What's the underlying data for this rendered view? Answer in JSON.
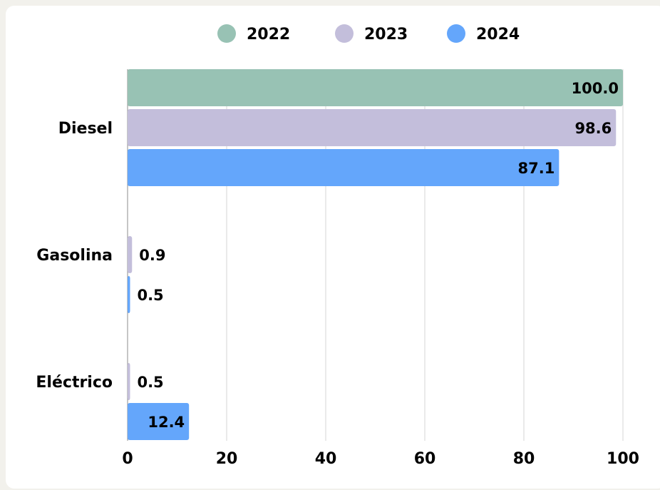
{
  "chart_data": {
    "type": "bar",
    "orientation": "horizontal",
    "categories": [
      "Diesel",
      "Gasolina",
      "Eléctrico"
    ],
    "series": [
      {
        "name": "2022",
        "color": "#98c2b4",
        "values": [
          100.0,
          null,
          null
        ],
        "labels": [
          "100.0",
          "",
          ""
        ]
      },
      {
        "name": "2023",
        "color": "#c3bedb",
        "values": [
          98.6,
          0.9,
          0.5
        ],
        "labels": [
          "98.6",
          "0.9",
          "0.5"
        ]
      },
      {
        "name": "2024",
        "color": "#64a6fb",
        "values": [
          87.1,
          0.5,
          12.4
        ],
        "labels": [
          "87.1",
          "0.5",
          "12.4"
        ]
      }
    ],
    "xlim": [
      0,
      100
    ],
    "xticks": [
      0,
      20,
      40,
      60,
      80,
      100
    ],
    "xtick_labels": [
      "0",
      "20",
      "40",
      "60",
      "80",
      "100"
    ],
    "grid": "vertical",
    "legend_position": "top-center",
    "title": "",
    "xlabel": "",
    "ylabel": ""
  }
}
